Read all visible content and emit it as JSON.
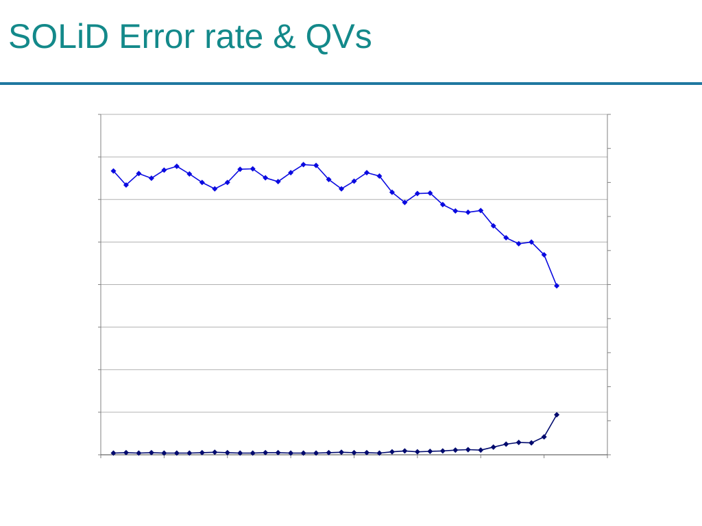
{
  "slide": {
    "title": "SOLiD Error rate & QVs"
  },
  "colors": {
    "title": "#13898a",
    "rule": "#1f78a0",
    "qv_series": "#0a0ae0",
    "error_series": "#000a6e",
    "gridline": "#b0b0b0",
    "axis": "#808080"
  },
  "chart_data": {
    "type": "line",
    "title": "",
    "xlabel": "",
    "ylabel": "",
    "y2label": "",
    "tick_labels_visible": false,
    "grid": true,
    "x": [
      1,
      2,
      3,
      4,
      5,
      6,
      7,
      8,
      9,
      10,
      11,
      12,
      13,
      14,
      15,
      16,
      17,
      18,
      19,
      20,
      21,
      22,
      23,
      24,
      25,
      26,
      27,
      28,
      29,
      30,
      31,
      32,
      33,
      34,
      35,
      36
    ],
    "xlim": [
      0,
      40
    ],
    "ylim": [
      0,
      8
    ],
    "y2lim": [
      0,
      10
    ],
    "series": [
      {
        "axis": "left",
        "marker": "diamond",
        "values": [
          6.67,
          6.34,
          6.61,
          6.5,
          6.69,
          6.78,
          6.6,
          6.4,
          6.25,
          6.4,
          6.71,
          6.72,
          6.51,
          6.42,
          6.63,
          6.82,
          6.8,
          6.47,
          6.25,
          6.43,
          6.63,
          6.55,
          6.17,
          5.93,
          6.14,
          6.15,
          5.88,
          5.73,
          5.7,
          5.74,
          5.38,
          5.1,
          4.96,
          5.0,
          4.7,
          3.97
        ]
      },
      {
        "axis": "left",
        "marker": "diamond",
        "values": [
          0.04,
          0.05,
          0.04,
          0.05,
          0.04,
          0.04,
          0.04,
          0.05,
          0.06,
          0.05,
          0.04,
          0.04,
          0.05,
          0.05,
          0.04,
          0.04,
          0.04,
          0.05,
          0.06,
          0.05,
          0.05,
          0.04,
          0.07,
          0.09,
          0.07,
          0.08,
          0.09,
          0.11,
          0.12,
          0.11,
          0.18,
          0.25,
          0.29,
          0.28,
          0.42,
          0.94
        ]
      }
    ]
  }
}
